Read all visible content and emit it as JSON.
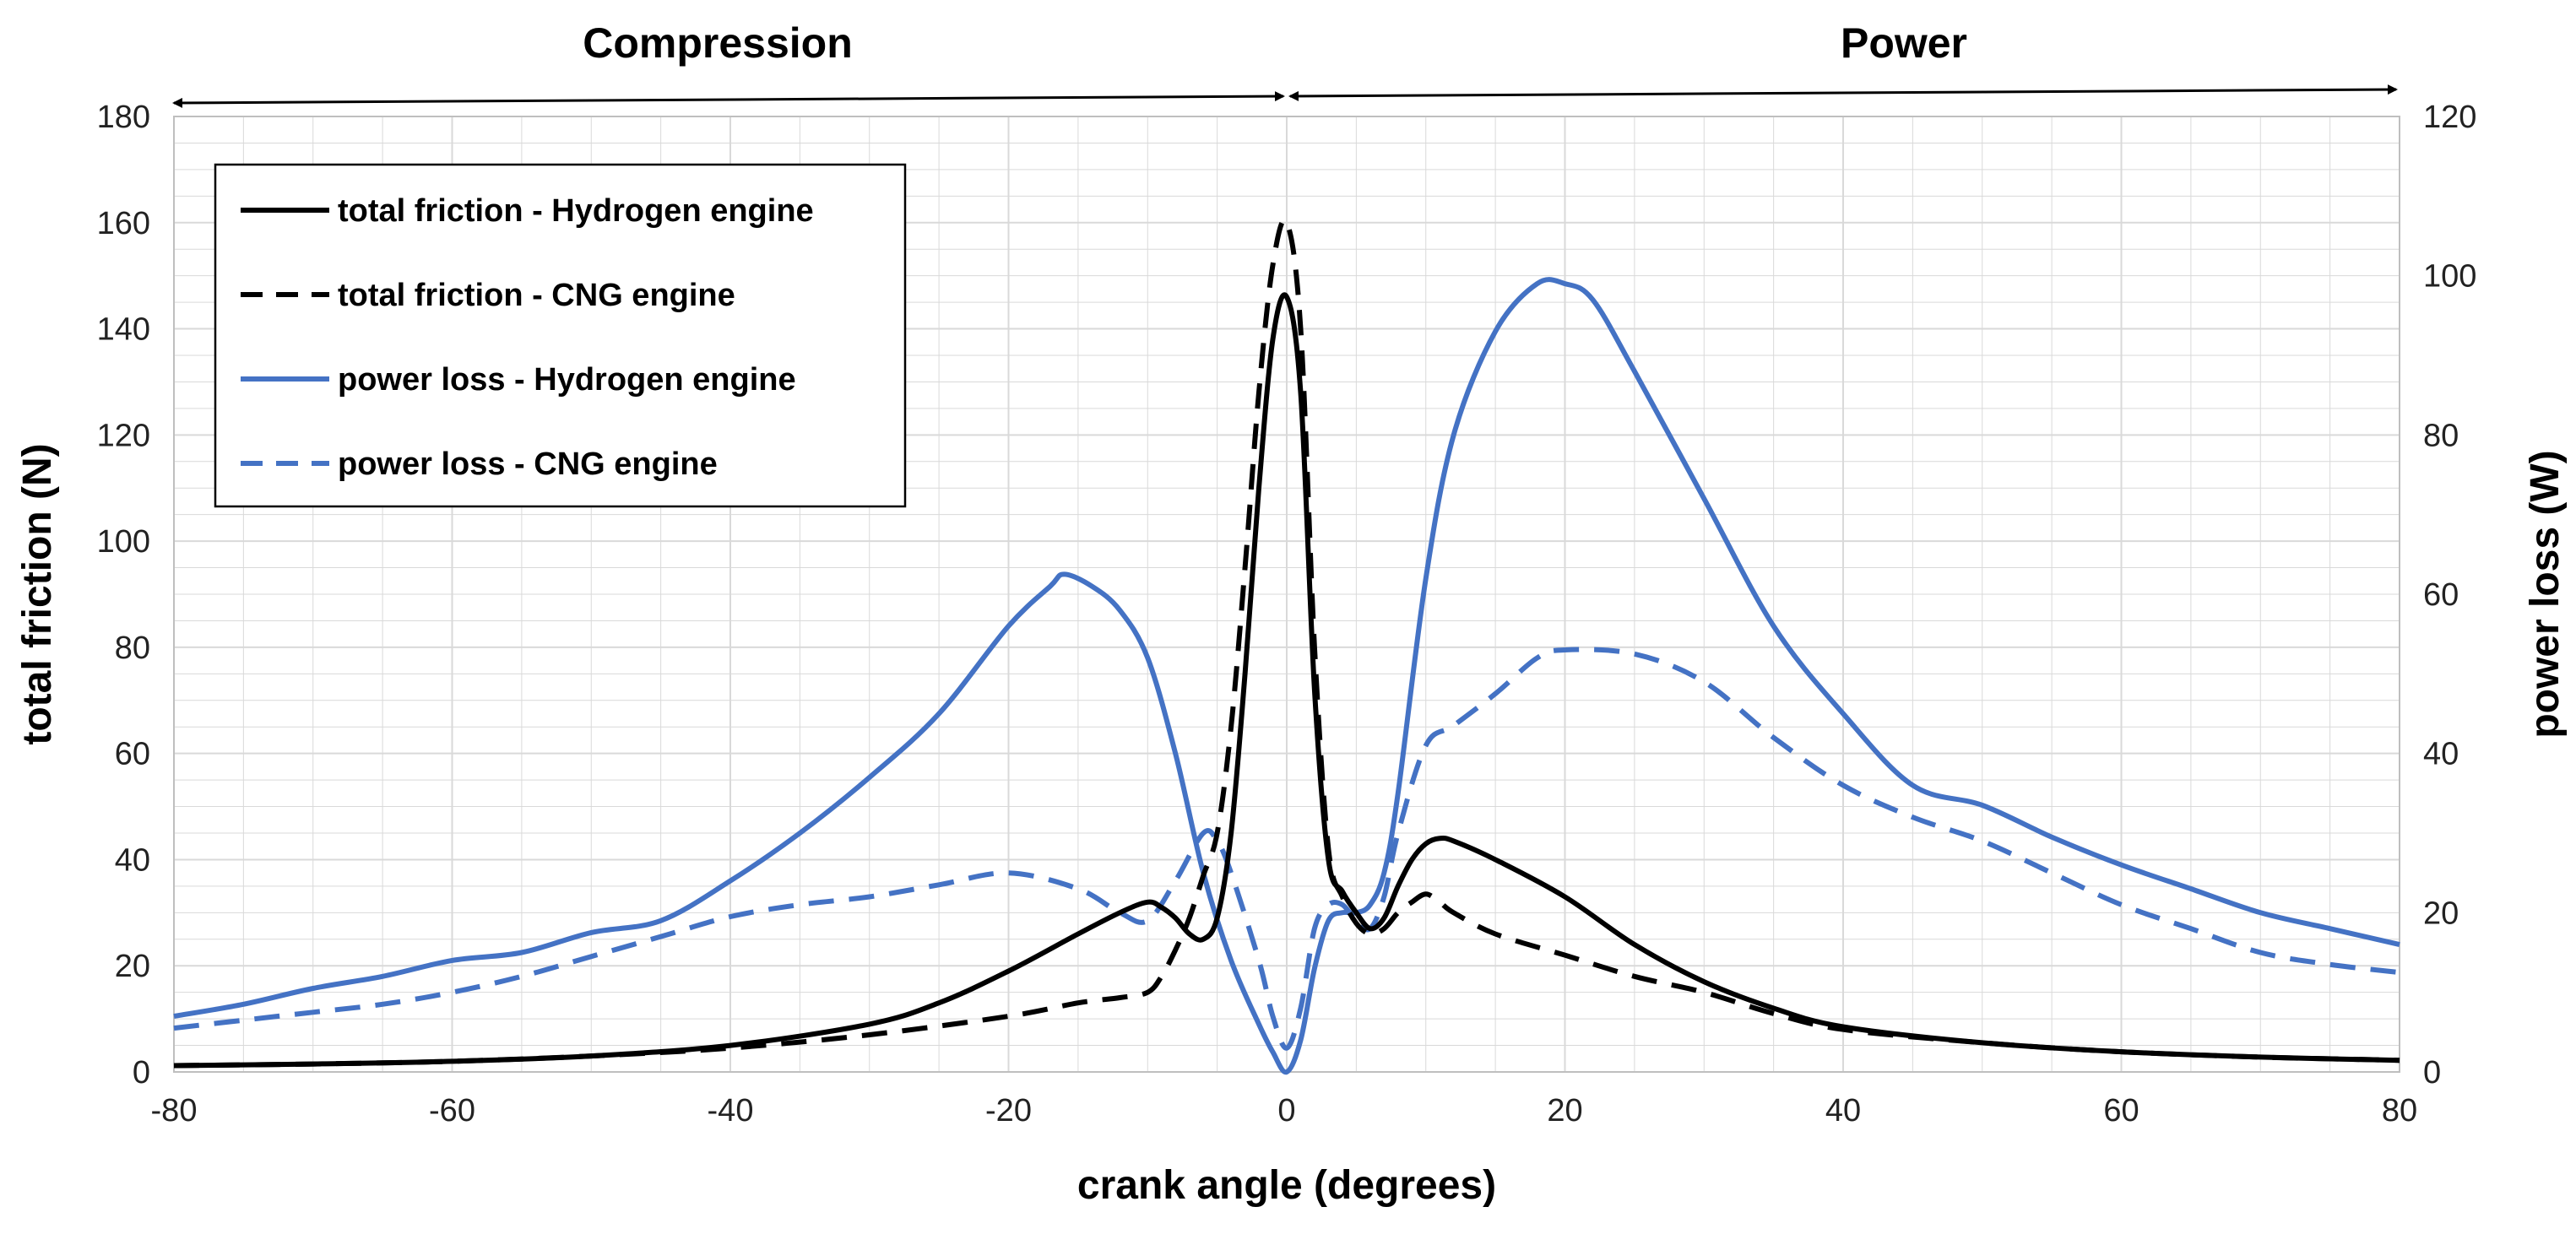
{
  "chart_data": {
    "type": "line",
    "title": "",
    "phases": [
      "Compression",
      "Power"
    ],
    "xlabel": "crank angle (degrees)",
    "ylabel_left": "total friction (N)",
    "ylabel_right": "power loss (W)",
    "xlim": [
      -80,
      80
    ],
    "ylim_left": [
      0,
      180
    ],
    "ylim_right": [
      0,
      120
    ],
    "xticks": [
      -80,
      -60,
      -40,
      -20,
      0,
      20,
      40,
      60,
      80
    ],
    "yticks_left": [
      0,
      20,
      40,
      60,
      80,
      100,
      120,
      140,
      160,
      180
    ],
    "yticks_right": [
      0,
      20,
      40,
      60,
      80,
      100,
      120
    ],
    "grid": true,
    "legend_position": "top-left",
    "colors": {
      "black": "#000000",
      "blue": "#4472C4",
      "grid": "#d9d9d9"
    },
    "series": [
      {
        "name": "total friction - Hydrogen engine",
        "axis": "left",
        "color": "#000000",
        "dash": false,
        "x": [
          -80,
          -70,
          -60,
          -50,
          -40,
          -30,
          -25,
          -20,
          -15,
          -12,
          -10,
          -9,
          -8,
          -7,
          -6,
          -5,
          -4,
          -3,
          -2,
          -1,
          0,
          1,
          2,
          3,
          4,
          5,
          6,
          7,
          8,
          9,
          10,
          11,
          12,
          15,
          20,
          25,
          30,
          35,
          40,
          50,
          60,
          70,
          80
        ],
        "y": [
          1.2,
          1.5,
          2,
          3,
          5,
          9,
          13,
          19,
          26,
          30,
          32,
          31,
          29,
          26,
          25,
          29,
          45,
          75,
          110,
          138,
          146,
          128,
          72,
          40,
          34,
          30,
          27,
          29,
          35,
          40,
          43,
          44,
          43.5,
          40,
          33,
          24,
          17,
          12,
          8.5,
          5.5,
          3.8,
          2.8,
          2.2
        ]
      },
      {
        "name": "total friction - CNG engine",
        "axis": "left",
        "color": "#000000",
        "dash": true,
        "x": [
          -80,
          -70,
          -60,
          -50,
          -40,
          -30,
          -20,
          -15,
          -12,
          -10,
          -9,
          -8,
          -7,
          -6,
          -5,
          -4,
          -3,
          -2,
          -1,
          0,
          1,
          2,
          3,
          4,
          5,
          6,
          7,
          8,
          9,
          10,
          11,
          12,
          15,
          20,
          25,
          30,
          35,
          40,
          50,
          60,
          70,
          80
        ],
        "y": [
          1.2,
          1.5,
          2,
          3,
          4.5,
          7,
          10.5,
          13,
          14,
          15,
          18,
          23,
          29,
          37,
          45,
          65,
          95,
          128,
          152,
          160,
          140,
          80,
          42,
          33,
          28,
          26,
          27,
          30,
          32,
          33.5,
          32,
          30,
          26,
          22,
          18,
          15,
          11,
          8,
          5.5,
          3.8,
          2.8,
          2.2
        ]
      },
      {
        "name": "power loss - Hydrogen engine",
        "axis": "right",
        "color": "#4472C4",
        "dash": false,
        "x": [
          -80,
          -75,
          -70,
          -65,
          -60,
          -55,
          -50,
          -45,
          -40,
          -35,
          -30,
          -25,
          -20,
          -17,
          -16,
          -14,
          -12,
          -10,
          -8,
          -6,
          -4,
          -2,
          -1,
          0,
          1,
          2,
          3,
          4,
          5,
          6,
          7,
          8,
          10,
          12,
          15,
          18,
          20,
          22,
          25,
          30,
          35,
          40,
          45,
          50,
          55,
          60,
          65,
          70,
          75,
          80
        ],
        "y": [
          7,
          8.5,
          10.5,
          12,
          14,
          15,
          17.5,
          19,
          24,
          30,
          37,
          45,
          56,
          61,
          62.5,
          61,
          58,
          52,
          40,
          25,
          14,
          6,
          2.5,
          0,
          4,
          13,
          19,
          20,
          20,
          21,
          25,
          35,
          62,
          80,
          93,
          99,
          99,
          97,
          88,
          72,
          56,
          45,
          36,
          33.5,
          29.5,
          26,
          23,
          20,
          18,
          16
        ]
      },
      {
        "name": "power loss - CNG engine",
        "axis": "right",
        "color": "#4472C4",
        "dash": true,
        "x": [
          -80,
          -75,
          -70,
          -65,
          -60,
          -55,
          -50,
          -45,
          -40,
          -35,
          -30,
          -25,
          -20,
          -15,
          -12,
          -10,
          -8,
          -6,
          -5,
          -4,
          -2,
          -1,
          0,
          1,
          2,
          3,
          4,
          5,
          6,
          7,
          8,
          10,
          12,
          15,
          18,
          20,
          25,
          30,
          35,
          40,
          45,
          50,
          55,
          60,
          65,
          70,
          75,
          80
        ],
        "y": [
          5.5,
          6.5,
          7.5,
          8.5,
          10,
          12,
          14.5,
          17,
          19.5,
          21,
          22,
          23.5,
          25,
          23,
          20,
          19,
          24,
          30,
          29,
          25,
          14,
          7,
          3,
          8,
          18,
          21,
          21,
          19,
          18,
          22,
          30,
          41,
          43.5,
          47.5,
          52,
          53,
          52.5,
          49,
          42,
          36,
          32,
          29,
          25,
          21,
          18,
          15,
          13.5,
          12.5
        ]
      }
    ]
  }
}
